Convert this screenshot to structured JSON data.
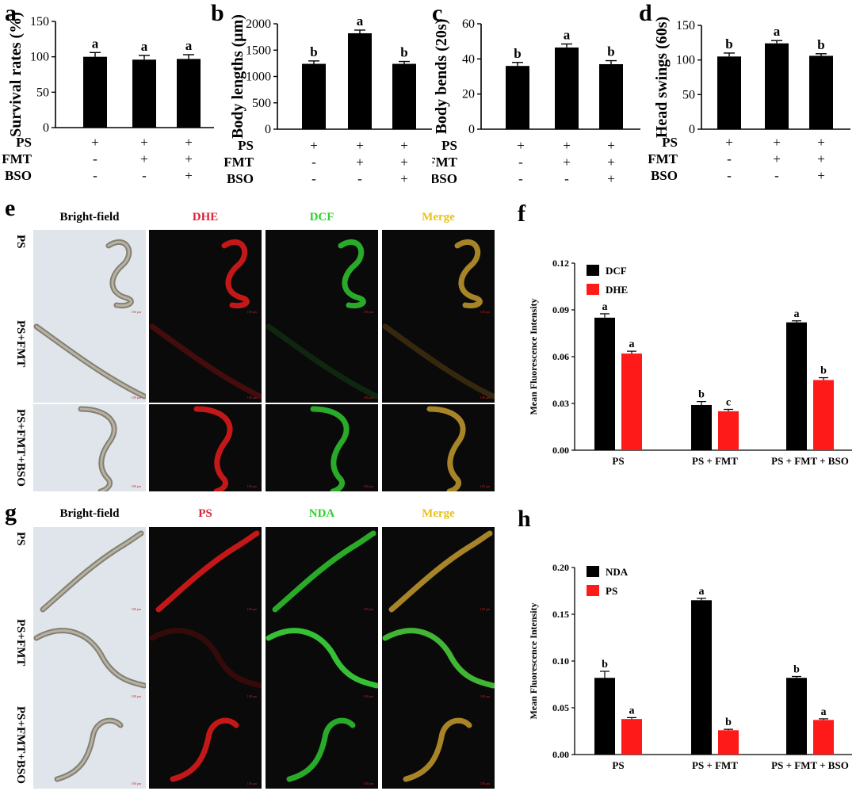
{
  "panels": {
    "a": {
      "label": "a"
    },
    "b": {
      "label": "b"
    },
    "c": {
      "label": "c"
    },
    "d": {
      "label": "d"
    },
    "e": {
      "label": "e"
    },
    "f": {
      "label": "f"
    },
    "g": {
      "label": "g"
    },
    "h": {
      "label": "h"
    }
  },
  "treatment_rows": [
    "PS",
    "FMT",
    "BSO"
  ],
  "treatment_signs": [
    [
      "+",
      "+",
      "+"
    ],
    [
      "-",
      "+",
      "+"
    ],
    [
      "-",
      "-",
      "+"
    ]
  ],
  "chart_data": [
    {
      "panel": "a",
      "type": "bar",
      "ylabel": "Survival rates (%)",
      "ylim": [
        0,
        150
      ],
      "yticks": [
        "0",
        "50",
        "100",
        "150"
      ],
      "tick_values": [
        0,
        50,
        100,
        150
      ],
      "values": [
        100,
        96,
        97
      ],
      "errors": [
        6,
        6,
        6
      ],
      "letters": [
        "a",
        "a",
        "a"
      ]
    },
    {
      "panel": "b",
      "type": "bar",
      "ylabel": "Body lengths (μm)",
      "ylim": [
        0,
        2000
      ],
      "yticks": [
        "0",
        "500",
        "1000",
        "1500",
        "2000"
      ],
      "tick_values": [
        0,
        500,
        1000,
        1500,
        2000
      ],
      "values": [
        1240,
        1820,
        1240
      ],
      "errors": [
        55,
        60,
        45
      ],
      "letters": [
        "b",
        "a",
        "b"
      ]
    },
    {
      "panel": "c",
      "type": "bar",
      "ylabel": "Body bends (20s)",
      "ylim": [
        0,
        60
      ],
      "yticks": [
        "0",
        "20",
        "40",
        "60"
      ],
      "tick_values": [
        0,
        20,
        40,
        60
      ],
      "values": [
        36,
        46.5,
        37
      ],
      "errors": [
        2,
        2,
        2
      ],
      "letters": [
        "b",
        "a",
        "b"
      ]
    },
    {
      "panel": "d",
      "type": "bar",
      "ylabel": "Head swings (60s)",
      "ylim": [
        0,
        150
      ],
      "yticks": [
        "0",
        "50",
        "100",
        "150"
      ],
      "tick_values": [
        0,
        50,
        100,
        150
      ],
      "values": [
        105,
        124,
        106
      ],
      "errors": [
        5,
        4,
        3
      ],
      "letters": [
        "b",
        "a",
        "b"
      ]
    },
    {
      "panel": "f",
      "type": "bar",
      "ylabel": "Mean Fluorescence Intensity",
      "ylim": [
        0,
        0.12
      ],
      "yticks": [
        "0.00",
        "0.03",
        "0.06",
        "0.09",
        "0.12"
      ],
      "tick_values": [
        0,
        0.03,
        0.06,
        0.09,
        0.12
      ],
      "categories": [
        "PS",
        "PS + FMT",
        "PS + FMT + BSO"
      ],
      "series": [
        {
          "name": "DCF",
          "color": "#000000",
          "values": [
            0.085,
            0.029,
            0.082
          ],
          "errors": [
            0.0025,
            0.0022,
            0.001
          ],
          "letters": [
            "a",
            "b",
            "a"
          ]
        },
        {
          "name": "DHE",
          "color": "#ff1a1a",
          "values": [
            0.062,
            0.025,
            0.045
          ],
          "errors": [
            0.0015,
            0.0012,
            0.0015
          ],
          "letters": [
            "a",
            "c",
            "b"
          ]
        }
      ],
      "legend": "top-left"
    },
    {
      "panel": "h",
      "type": "bar",
      "ylabel": "Mean Fluorescence Intensity",
      "ylim": [
        0,
        0.2
      ],
      "yticks": [
        "0.00",
        "0.05",
        "0.10",
        "0.15",
        "0.20"
      ],
      "tick_values": [
        0,
        0.05,
        0.1,
        0.15,
        0.2
      ],
      "categories": [
        "PS",
        "PS + FMT",
        "PS + FMT + BSO"
      ],
      "series": [
        {
          "name": "NDA",
          "color": "#000000",
          "values": [
            0.082,
            0.165,
            0.082
          ],
          "errors": [
            0.007,
            0.002,
            0.0015
          ],
          "letters": [
            "b",
            "a",
            "b"
          ]
        },
        {
          "name": "PS",
          "color": "#ff1a1a",
          "values": [
            0.038,
            0.026,
            0.037
          ],
          "errors": [
            0.0015,
            0.001,
            0.0012
          ],
          "letters": [
            "a",
            "b",
            "a"
          ]
        }
      ],
      "legend": "top-left"
    }
  ],
  "micrographs": {
    "e": {
      "headers": [
        "Bright-field",
        "DHE",
        "DCF",
        "Merge"
      ],
      "header_colors": [
        "#000000",
        "#d6243a",
        "#2fd12f",
        "#e6c21a"
      ],
      "rows": [
        "PS",
        "PS+FMT",
        "PS+FMT+BSO"
      ],
      "scale_label": "100 μm"
    },
    "g": {
      "headers": [
        "Bright-field",
        "PS",
        "NDA",
        "Merge"
      ],
      "header_colors": [
        "#000000",
        "#d6243a",
        "#2fd12f",
        "#e6c21a"
      ],
      "rows": [
        "PS",
        "PS+FMT",
        "PS+FMT+BSO"
      ],
      "scale_label": "100 μm"
    }
  }
}
